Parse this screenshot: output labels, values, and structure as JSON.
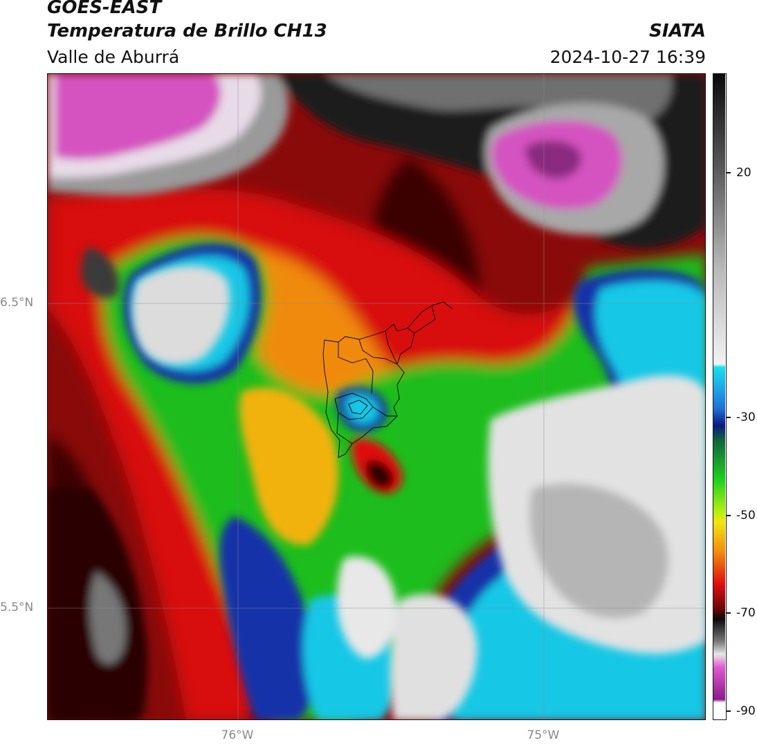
{
  "header": {
    "title_line1": "GOES-EAST",
    "title_line2": "Temperatura de Brillo CH13",
    "subtitle": "Valle de Aburrá",
    "organization": "SIATA",
    "timestamp": "2024-10-27 16:39"
  },
  "map": {
    "lat_labels": [
      {
        "text": "6.5°N",
        "value": 6.5
      },
      {
        "text": "5.5°N",
        "value": 5.5
      }
    ],
    "lon_labels": [
      {
        "text": "76°W",
        "value": -76.0
      },
      {
        "text": "75°W",
        "value": -75.0
      }
    ],
    "colors": {
      "cold_magenta": "#d452c0",
      "cold_gray": "#9a9a9a",
      "cloud_white": "#e6e6e6",
      "cyan": "#19c7e6",
      "blue": "#1233a8",
      "green": "#1fc21f",
      "yellow": "#f2e60d",
      "orange": "#f28c0d",
      "red": "#e01010",
      "dark_red": "#7a0808",
      "black": "#0a0a0a"
    }
  },
  "colorbar": {
    "ticks": [
      {
        "label": "20",
        "value": 20
      },
      {
        "label": "-30",
        "value": -30
      },
      {
        "label": "-50",
        "value": -50
      },
      {
        "label": "-70",
        "value": -70
      },
      {
        "label": "-90",
        "value": -90
      }
    ]
  }
}
